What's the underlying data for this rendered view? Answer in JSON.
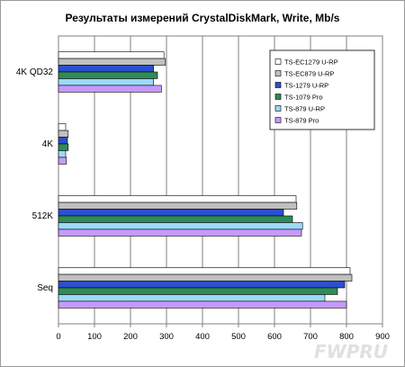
{
  "chart_data": {
    "type": "bar",
    "orientation": "horizontal",
    "title": "Результаты измерений CrystalDiskMark, Write, Mb/s",
    "categories": [
      "4K QD32",
      "4K",
      "512K",
      "Seq"
    ],
    "xlim": [
      0,
      900
    ],
    "xticks": [
      "0",
      "100",
      "200",
      "300",
      "400",
      "500",
      "600",
      "700",
      "800",
      "900"
    ],
    "grid": true,
    "legend_position": "top-right",
    "series": [
      {
        "name": "TS-EC1279 U-RP",
        "color": "#ffffff",
        "values": [
          293,
          20,
          660,
          810
        ]
      },
      {
        "name": "TS-EC879 U-RP",
        "color": "#c0c0c0",
        "values": [
          297,
          27,
          662,
          815
        ]
      },
      {
        "name": "TS-1279 U-RP",
        "color": "#2c4fcf",
        "values": [
          264,
          25,
          625,
          795
        ]
      },
      {
        "name": "TS-1079 Pro",
        "color": "#2e8b57",
        "values": [
          275,
          27,
          650,
          775
        ]
      },
      {
        "name": "TS-879 U-RP",
        "color": "#9fd8f8",
        "values": [
          264,
          20,
          678,
          740
        ]
      },
      {
        "name": "TS-879 Pro",
        "color": "#c49aff",
        "values": [
          286,
          22,
          675,
          800
        ]
      }
    ]
  },
  "watermark": "FWPRU"
}
